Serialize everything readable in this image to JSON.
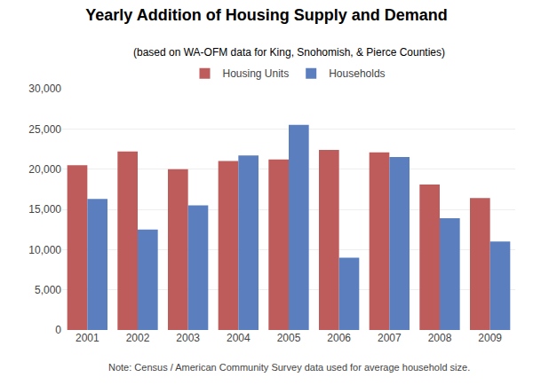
{
  "chart_data": {
    "type": "bar",
    "title": "Yearly Addition of Housing Supply and Demand",
    "subtitle": "(based on WA-OFM data for King, Snohomish, & Pierce Counties)",
    "annotations": [
      "Note: Census / American Community Survey data used for average household size."
    ],
    "categories": [
      "2001",
      "2002",
      "2003",
      "2004",
      "2005",
      "2006",
      "2007",
      "2008",
      "2009"
    ],
    "series": [
      {
        "name": "Housing Units",
        "color": "#BE5B5B",
        "values": [
          20500,
          22200,
          20000,
          21000,
          21200,
          22400,
          22100,
          18100,
          16400
        ]
      },
      {
        "name": "Households",
        "color": "#5B7FBE",
        "values": [
          16300,
          12500,
          15500,
          21700,
          25500,
          9000,
          21500,
          13900,
          11000
        ]
      }
    ],
    "ylim": [
      0,
      30000
    ],
    "yticks": [
      0,
      {
        "value": 5000,
        "label": "5,000"
      },
      {
        "value": 10000,
        "label": "10,000"
      },
      {
        "value": 15000,
        "label": "15,000"
      },
      {
        "value": 20000,
        "label": "20,000"
      },
      {
        "value": 25000,
        "label": "25,000"
      },
      {
        "value": 30000,
        "label": "30,000"
      }
    ],
    "grid": true,
    "legend": "top"
  }
}
